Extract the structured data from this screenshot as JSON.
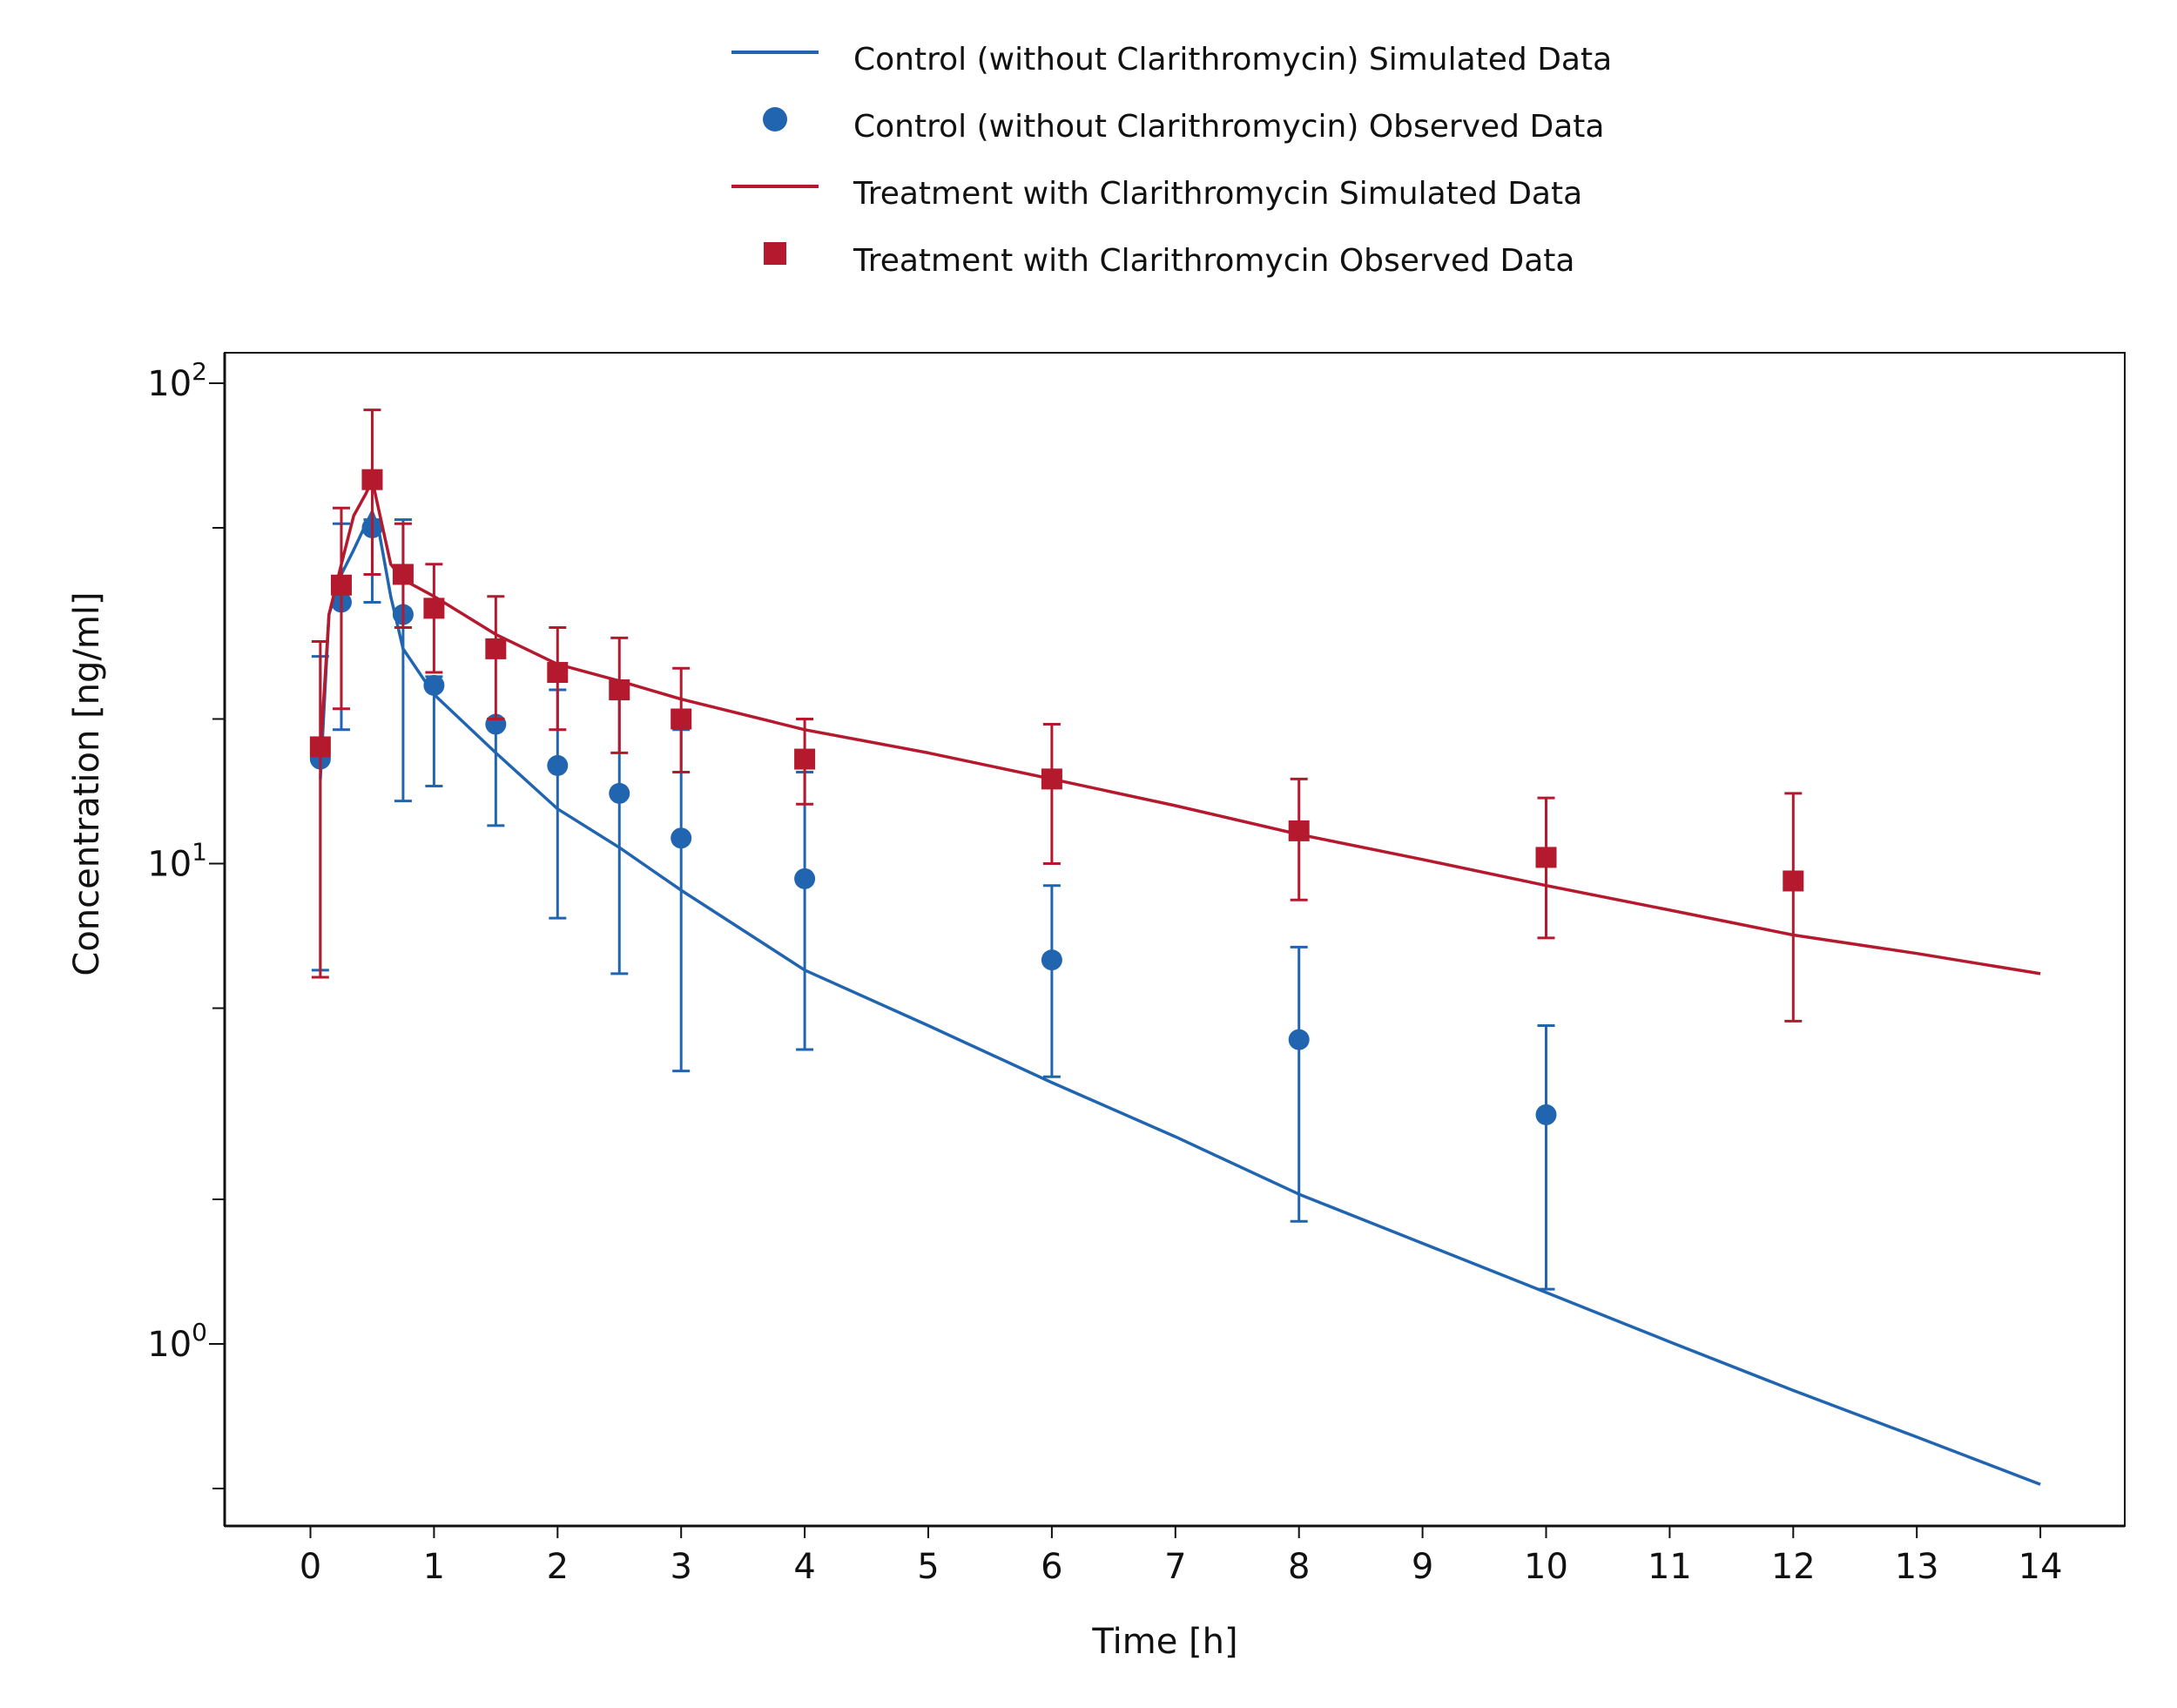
{
  "chart_data": {
    "type": "scatter",
    "xlabel": "Time [h]",
    "ylabel": "Concentration [ng/ml]",
    "yscale": "log",
    "xlim": [
      -0.7,
      14.7
    ],
    "ylim": [
      0.45,
      120
    ],
    "x_ticks": [
      0,
      1,
      2,
      3,
      4,
      5,
      6,
      7,
      8,
      9,
      10,
      11,
      12,
      13,
      14
    ],
    "y_major_ticks": [
      {
        "value": 1,
        "base": "10",
        "exp": "0"
      },
      {
        "value": 10,
        "base": "10",
        "exp": "1"
      },
      {
        "value": 100,
        "base": "10",
        "exp": "2"
      }
    ],
    "y_minor_ticks": [
      0.5,
      2,
      5,
      20,
      50
    ],
    "grid": false,
    "legend_position": "top-center",
    "series": [
      {
        "name": "Control (without Clarithromycin) Simulated Data",
        "kind": "line",
        "color": "#2165b0",
        "x": [
          0.08,
          0.15,
          0.25,
          0.35,
          0.45,
          0.5,
          0.55,
          0.65,
          0.75,
          1,
          1.5,
          2,
          2.5,
          3,
          4,
          5,
          6,
          7,
          8,
          9,
          10,
          11,
          12,
          13,
          14
        ],
        "y": [
          15,
          33,
          40,
          45,
          51,
          54,
          50,
          36,
          28,
          22.5,
          17,
          13,
          10.8,
          8.8,
          6,
          4.6,
          3.5,
          2.7,
          2.05,
          1.62,
          1.28,
          1.01,
          0.8,
          0.64,
          0.51
        ]
      },
      {
        "name": "Control (without Clarithromycin) Observed Data",
        "kind": "points",
        "marker": "circle",
        "color": "#2165b0",
        "x": [
          0.08,
          0.25,
          0.5,
          0.75,
          1,
          1.5,
          2,
          2.5,
          3,
          4,
          6,
          8,
          10
        ],
        "y": [
          16.5,
          35,
          50,
          33,
          23.5,
          19.5,
          16,
          14,
          11.3,
          9.3,
          6.3,
          4.3,
          3
        ],
        "err_low": [
          6,
          19,
          35,
          13.5,
          14.5,
          12,
          7.7,
          5.9,
          3.7,
          4.1,
          3.6,
          1.8,
          1.3
        ],
        "err_high": [
          27,
          51,
          52,
          52,
          24.5,
          20,
          23,
          22,
          19,
          15.5,
          9,
          6.7,
          4.6
        ]
      },
      {
        "name": "Treatment with Clarithromycin Simulated Data",
        "kind": "line",
        "color": "#b5192e",
        "x": [
          0.08,
          0.15,
          0.25,
          0.35,
          0.45,
          0.5,
          0.55,
          0.65,
          0.75,
          1,
          1.5,
          2,
          2.5,
          3,
          4,
          5,
          6,
          7,
          8,
          9,
          10,
          11,
          12,
          13,
          14
        ],
        "y": [
          17,
          33,
          42,
          53,
          59,
          63,
          55,
          42,
          39,
          36,
          30,
          26,
          24,
          22,
          19,
          17,
          15,
          13.2,
          11.5,
          10.2,
          9,
          8,
          7.1,
          6.5,
          5.9
        ],
        "label": ""
      },
      {
        "name": "Treatment with Clarithromycin Observed Data",
        "kind": "points",
        "marker": "square",
        "color": "#b5192e",
        "x": [
          0.08,
          0.25,
          0.5,
          0.75,
          1,
          1.5,
          2,
          2.5,
          3,
          4,
          6,
          8,
          10,
          12
        ],
        "y": [
          17.5,
          38,
          63,
          40,
          34,
          28,
          25,
          23,
          20,
          16.5,
          15,
          11.7,
          10.3,
          9.2
        ],
        "err_low": [
          5.8,
          21,
          40,
          31,
          25,
          20,
          19,
          17,
          15.5,
          13.3,
          10,
          8.4,
          7,
          4.7
        ],
        "err_high": [
          29,
          55,
          88,
          51,
          42,
          36,
          31,
          29.5,
          25.5,
          20,
          19.5,
          15,
          13.7,
          14
        ]
      }
    ]
  }
}
